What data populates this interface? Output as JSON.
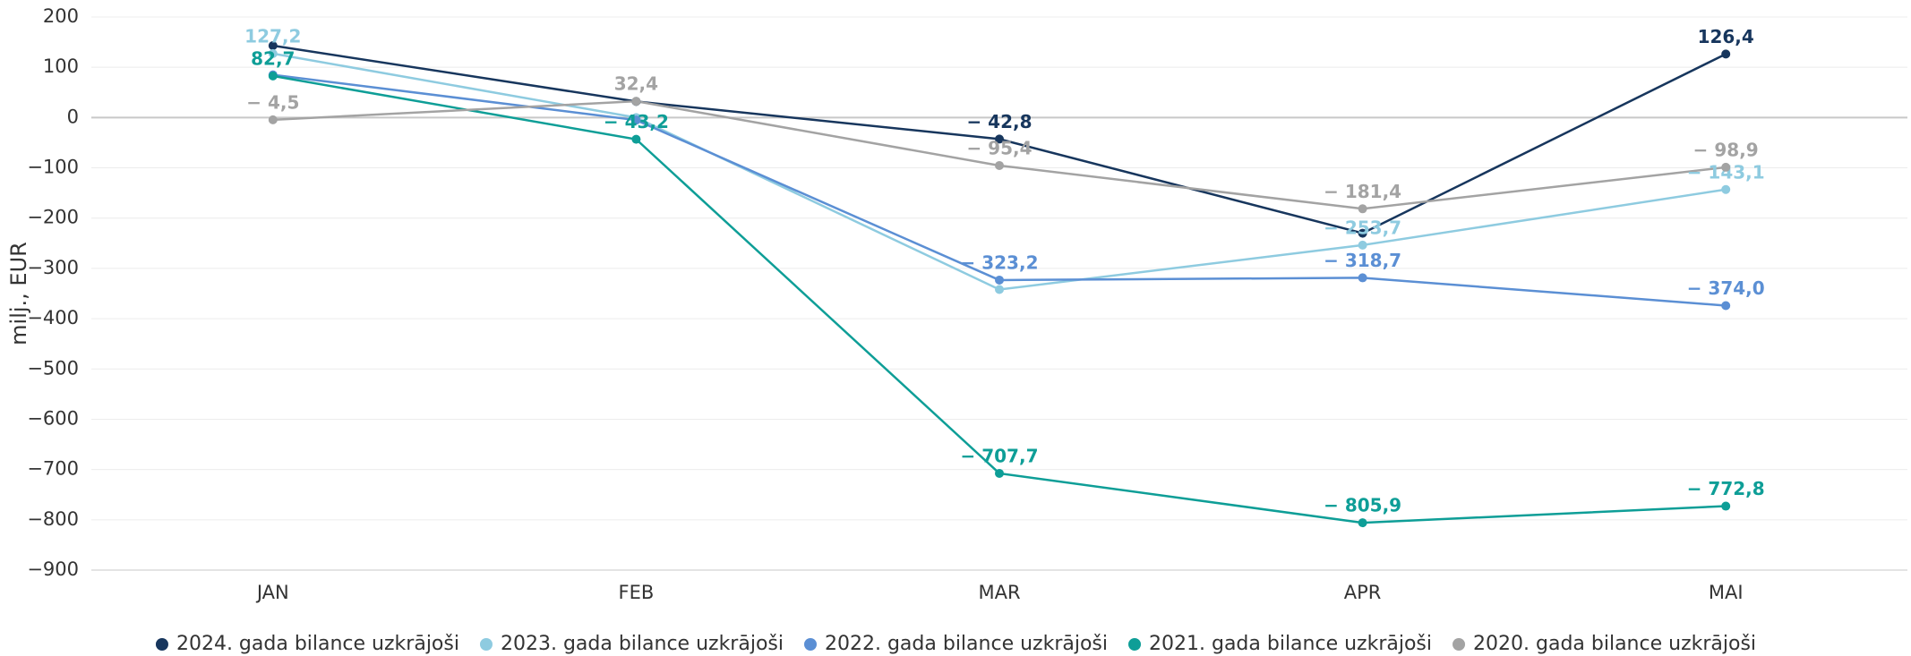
{
  "chart_data": {
    "type": "line",
    "y_label": "milj., EUR",
    "categories": [
      "JAN",
      "FEB",
      "MAR",
      "APR",
      "MAI"
    ],
    "series": [
      {
        "name": "2024. gada bilance uzkrājoši",
        "color": "#17365d",
        "values": [
          143,
          32,
          -42.8,
          -230,
          126.4
        ],
        "value_labels": [
          null,
          null,
          "− 42,8",
          null,
          "126,4"
        ]
      },
      {
        "name": "2023. gada bilance uzkrājoši",
        "color": "#8ecbe0",
        "values": [
          127.2,
          0,
          -342,
          -253.7,
          -143.1
        ],
        "value_labels": [
          "127,2",
          null,
          null,
          "− 253,7",
          "− 143,1"
        ]
      },
      {
        "name": "2022. gada bilance uzkrājoši",
        "color": "#5b8fd4",
        "values": [
          85,
          -5,
          -323.2,
          -318.7,
          -374.0
        ],
        "value_labels": [
          null,
          null,
          "− 323,2",
          "− 318,7",
          "− 374,0"
        ]
      },
      {
        "name": "2021. gada bilance uzkrājoši",
        "color": "#0e9e97",
        "values": [
          82.7,
          -43.2,
          -707.7,
          -805.9,
          -772.8
        ],
        "value_labels": [
          "82,7",
          "− 43,2",
          "− 707,7",
          "− 805,9",
          "− 772,8"
        ]
      },
      {
        "name": "2020. gada bilance uzkrājoši",
        "color": "#a3a3a3",
        "values": [
          -4.5,
          32.4,
          -95.4,
          -181.4,
          -98.9
        ],
        "value_labels": [
          "− 4,5",
          "32,4",
          "− 95,4",
          "− 181,4",
          "− 98,9"
        ]
      }
    ],
    "ylim": [
      -900,
      200
    ],
    "yticks": [
      200,
      100,
      0,
      {
        "value": -100,
        "label": "−100"
      },
      {
        "value": -200,
        "label": "−200"
      },
      {
        "value": -300,
        "label": "−300"
      },
      {
        "value": -400,
        "label": "−400"
      },
      {
        "value": -500,
        "label": "−500"
      },
      {
        "value": -600,
        "label": "−600"
      },
      {
        "value": -700,
        "label": "−700"
      },
      {
        "value": -800,
        "label": "−800"
      },
      {
        "value": -900,
        "label": "−900"
      }
    ],
    "grid": true
  }
}
